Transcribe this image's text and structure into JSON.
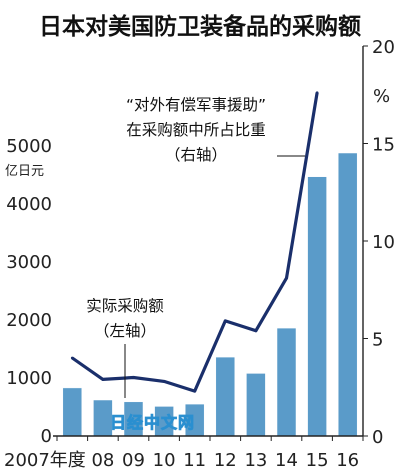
{
  "chart_data": {
    "type": "bar",
    "title": "日本对美国防卫装备品的采购额",
    "left_axis": {
      "unit": "亿日元",
      "ylim": [
        0,
        5000
      ],
      "ticks": [
        "0",
        "1000",
        "2000",
        "3000",
        "4000",
        "5000"
      ]
    },
    "right_axis": {
      "unit": "%",
      "ylim": [
        0,
        20
      ],
      "ticks": [
        "0",
        "5",
        "10",
        "15",
        "20"
      ]
    },
    "categories": [
      "2007年度",
      "08",
      "09",
      "10",
      "11",
      "12",
      "13",
      "14",
      "15",
      "16"
    ],
    "series": [
      {
        "type": "bar",
        "axis": "left",
        "color": "#5a9bc9",
        "label_lines": [
          "实际采购额",
          "（左轴）"
        ],
        "values": [
          830,
          620,
          590,
          510,
          550,
          1360,
          1080,
          1860,
          4470,
          4880
        ]
      },
      {
        "type": "line",
        "axis": "right",
        "color": "#1a2f6b",
        "label_lines": [
          "“对外有偿军事援助”",
          "在采购额中所占比重",
          "（右轴）"
        ],
        "values": [
          4.0,
          2.9,
          3.0,
          2.8,
          2.3,
          5.9,
          5.4,
          8.1,
          17.6,
          null
        ]
      }
    ],
    "grid": false
  },
  "watermark": "日经中文网"
}
